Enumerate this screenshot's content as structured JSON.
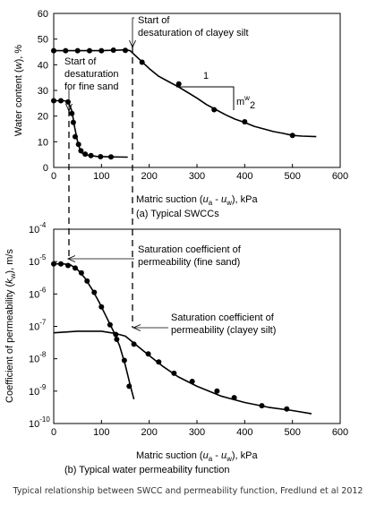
{
  "caption": "Typical relationship between SWCC and permeability function, Fredlund et al 2012",
  "chart_data": [
    {
      "type": "line",
      "subtitle": "(a) Typical SWCCs",
      "xlabel": "Matric suction (u_a - u_w), kPa",
      "xlabel_parts": {
        "lead": "Matric suction (",
        "a": "u",
        "a_sub": "a",
        "dash": " - ",
        "w": "u",
        "w_sub": "w",
        "tail": "), kPa"
      },
      "ylabel": "Water content (w), %",
      "ylabel_parts": {
        "lead": "Water content (",
        "w": "w",
        "tail": "), %"
      },
      "xlim": [
        0,
        600
      ],
      "ylim": [
        0,
        60
      ],
      "x_ticks": [
        "0",
        "100",
        "200",
        "300",
        "400",
        "500",
        "600"
      ],
      "y_ticks": [
        "0",
        "10",
        "20",
        "30",
        "40",
        "50",
        "60"
      ],
      "grid": false,
      "series": [
        {
          "curve": [
            [
              0,
              45.5
            ],
            [
              50,
              45.5
            ],
            [
              100,
              45.5
            ],
            [
              150,
              45.8
            ],
            [
              160,
              45.5
            ],
            [
              180,
              42
            ],
            [
              200,
              38.5
            ],
            [
              220,
              35.5
            ],
            [
              240,
              33.5
            ],
            [
              260,
              31.5
            ],
            [
              280,
              29.3
            ],
            [
              300,
              27
            ],
            [
              320,
              24.5
            ],
            [
              340,
              22.5
            ],
            [
              360,
              20.5
            ],
            [
              380,
              18.8
            ],
            [
              400,
              17.5
            ],
            [
              420,
              16
            ],
            [
              440,
              15
            ],
            [
              460,
              14
            ],
            [
              480,
              13.3
            ],
            [
              500,
              12.5
            ],
            [
              520,
              12.2
            ],
            [
              550,
              12
            ]
          ],
          "markers": [
            [
              0,
              45.5
            ],
            [
              25,
              45.5
            ],
            [
              50,
              45.5
            ],
            [
              75,
              45.5
            ],
            [
              100,
              45.5
            ],
            [
              125,
              45.7
            ],
            [
              150,
              45.6
            ],
            [
              185,
              41
            ],
            [
              262,
              32.5
            ],
            [
              336,
              22.5
            ],
            [
              400,
              17.8
            ],
            [
              500,
              12.5
            ]
          ]
        },
        {
          "curve": [
            [
              0,
              26
            ],
            [
              20,
              26
            ],
            [
              30,
              25.8
            ],
            [
              38,
              22
            ],
            [
              44,
              15.5
            ],
            [
              50,
              10
            ],
            [
              55,
              7
            ],
            [
              60,
              5.5
            ],
            [
              70,
              4.8
            ],
            [
              90,
              4.3
            ],
            [
              120,
              4.1
            ],
            [
              155,
              4
            ]
          ],
          "markers": [
            [
              0,
              26
            ],
            [
              15,
              26
            ],
            [
              30,
              25.5
            ],
            [
              38,
              21
            ],
            [
              41,
              17.5
            ],
            [
              45,
              12
            ],
            [
              52,
              9
            ],
            [
              57,
              6.5
            ],
            [
              66,
              5.2
            ],
            [
              78,
              4.6
            ],
            [
              98,
              4.2
            ],
            [
              120,
              4.1
            ]
          ]
        }
      ],
      "slope_label": "1",
      "slope_sub_a": "m",
      "slope_sub_sup": "w",
      "slope_sub_b": "2",
      "annotations": [
        {
          "lines": [
            "Start of",
            "desaturation of clayey silt"
          ]
        },
        {
          "lines": [
            "Start of",
            "desaturation",
            "for fine sand"
          ]
        }
      ]
    },
    {
      "type": "line",
      "subtitle": "(b) Typical water permeability function",
      "xlabel": "Matric suction (u_a - u_w), kPa",
      "xlabel_parts": {
        "lead": "Matric suction (",
        "a": "u",
        "a_sub": "a",
        "dash": " - ",
        "w": "u",
        "w_sub": "w",
        "tail": "), kPa"
      },
      "ylabel": "Coefficient of permeability (k_w), m/s",
      "ylabel_parts": {
        "lead": "Coefficient of permeability (",
        "k": "k",
        "k_sub": "w",
        "tail": "), m/s"
      },
      "xlim": [
        0,
        600
      ],
      "ylim_log10": [
        -10,
        -4
      ],
      "y_scale": "log",
      "x_ticks": [
        "0",
        "100",
        "200",
        "300",
        "400",
        "500",
        "600"
      ],
      "y_ticks": [
        {
          "base": "10",
          "exp": "-4"
        },
        {
          "base": "10",
          "exp": "-5"
        },
        {
          "base": "10",
          "exp": "-6"
        },
        {
          "base": "10",
          "exp": "-7"
        },
        {
          "base": "10",
          "exp": "-8"
        },
        {
          "base": "10",
          "exp": "-9"
        },
        {
          "base": "10",
          "exp": "-10"
        }
      ],
      "grid": false,
      "series": [
        {
          "curve": [
            [
              0,
              -5.07
            ],
            [
              20,
              -5.07
            ],
            [
              35,
              -5.1
            ],
            [
              50,
              -5.25
            ],
            [
              65,
              -5.5
            ],
            [
              80,
              -5.85
            ],
            [
              95,
              -6.25
            ],
            [
              110,
              -6.7
            ],
            [
              125,
              -7.15
            ],
            [
              138,
              -7.6
            ],
            [
              150,
              -8.2
            ],
            [
              160,
              -8.8
            ],
            [
              168,
              -9.25
            ]
          ],
          "markers": [
            [
              0,
              -5.07
            ],
            [
              15,
              -5.07
            ],
            [
              30,
              -5.12
            ],
            [
              45,
              -5.2
            ],
            [
              58,
              -5.35
            ],
            [
              70,
              -5.6
            ],
            [
              85,
              -5.95
            ],
            [
              100,
              -6.4
            ],
            [
              118,
              -6.95
            ],
            [
              132,
              -7.4
            ],
            [
              148,
              -8.05
            ],
            [
              158,
              -8.85
            ]
          ]
        },
        {
          "curve": [
            [
              0,
              -7.2
            ],
            [
              50,
              -7.15
            ],
            [
              100,
              -7.15
            ],
            [
              130,
              -7.22
            ],
            [
              150,
              -7.3
            ],
            [
              175,
              -7.6
            ],
            [
              200,
              -7.9
            ],
            [
              230,
              -8.25
            ],
            [
              260,
              -8.55
            ],
            [
              300,
              -8.85
            ],
            [
              350,
              -9.15
            ],
            [
              400,
              -9.35
            ],
            [
              450,
              -9.5
            ],
            [
              500,
              -9.6
            ],
            [
              540,
              -9.7
            ]
          ],
          "markers": [
            [
              130,
              -7.25
            ],
            [
              168,
              -7.55
            ],
            [
              198,
              -7.85
            ],
            [
              220,
              -8.1
            ],
            [
              252,
              -8.45
            ],
            [
              290,
              -8.7
            ],
            [
              342,
              -9.0
            ],
            [
              378,
              -9.2
            ],
            [
              436,
              -9.45
            ],
            [
              488,
              -9.55
            ]
          ]
        }
      ],
      "annotations": [
        {
          "lines": [
            "Saturation coefficient of",
            "permeability (fine sand)"
          ]
        },
        {
          "lines": [
            "Saturation coefficient of",
            "permeability (clayey silt)"
          ]
        }
      ]
    }
  ]
}
